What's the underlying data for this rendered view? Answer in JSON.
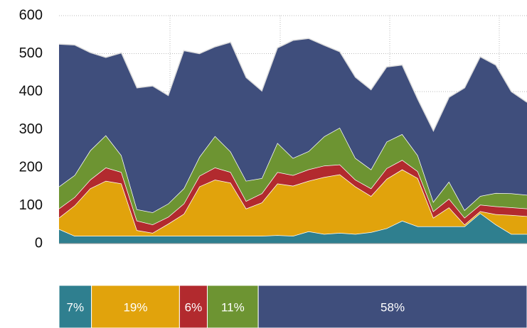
{
  "chart_data": {
    "type": "stacked_area",
    "ylim": [
      0,
      600
    ],
    "yticks": [
      0,
      100,
      200,
      300,
      400,
      500,
      600
    ],
    "grid": true,
    "series": [
      {
        "color": "#2f7f8f",
        "values": [
          38,
          20,
          20,
          20,
          20,
          20,
          20,
          20,
          20,
          20,
          20,
          20,
          20,
          20,
          22,
          20,
          32,
          25,
          28,
          25,
          30,
          40,
          60,
          45,
          45,
          45,
          45,
          80,
          50,
          25,
          25
        ]
      },
      {
        "color": "#e1a30c",
        "values": [
          30,
          80,
          125,
          145,
          138,
          15,
          8,
          32,
          58,
          130,
          148,
          140,
          72,
          88,
          136,
          132,
          133,
          150,
          154,
          125,
          95,
          130,
          135,
          127,
          23,
          50,
          5,
          5,
          27,
          50,
          47
        ]
      },
      {
        "color": "#b22a2e",
        "values": [
          24,
          22,
          23,
          35,
          30,
          25,
          22,
          18,
          27,
          28,
          32,
          28,
          20,
          24,
          30,
          28,
          30,
          30,
          26,
          18,
          20,
          28,
          25,
          18,
          17,
          23,
          18,
          17,
          21,
          20,
          20
        ]
      },
      {
        "color": "#6d9432",
        "values": [
          58,
          58,
          77,
          85,
          44,
          30,
          32,
          35,
          40,
          50,
          83,
          54,
          53,
          40,
          77,
          45,
          48,
          77,
          97,
          57,
          50,
          70,
          68,
          42,
          25,
          45,
          20,
          23,
          35,
          37,
          36
        ]
      },
      {
        "color": "#3f4e7c",
        "values": [
          375,
          343,
          258,
          205,
          270,
          320,
          333,
          285,
          363,
          272,
          235,
          288,
          272,
          230,
          250,
          310,
          297,
          240,
          200,
          213,
          210,
          197,
          182,
          148,
          187,
          222,
          322,
          367,
          337,
          268,
          244
        ]
      }
    ],
    "share": {
      "values": [
        7,
        19,
        6,
        11,
        58
      ],
      "value_labels": [
        "7%",
        "19%",
        "6%",
        "11%",
        "58%"
      ]
    }
  }
}
